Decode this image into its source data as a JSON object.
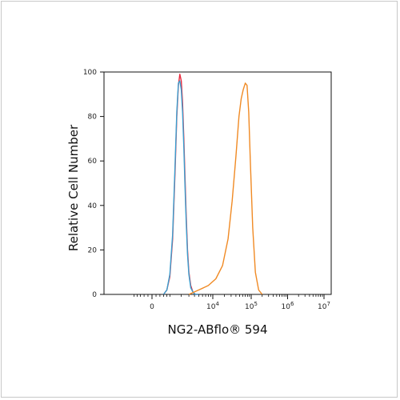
{
  "chart_data": {
    "type": "line",
    "xlabel": "NG2-ABflo® 594",
    "ylabel": "Relative Cell Number",
    "x_scale": "biexponential",
    "xlim": [
      -1000,
      10000000
    ],
    "ylim": [
      0,
      100
    ],
    "y_ticks": [
      0,
      20,
      40,
      60,
      80,
      100
    ],
    "x_ticks": [
      {
        "value": 0,
        "label": "0"
      },
      {
        "value": 10000,
        "label": "10",
        "exp": "4"
      },
      {
        "value": 100000,
        "label": "10",
        "exp": "5"
      },
      {
        "value": 1000000,
        "label": "10",
        "exp": "6"
      },
      {
        "value": 10000000,
        "label": "10",
        "exp": "7"
      }
    ],
    "grid": false,
    "legend": "none",
    "series": [
      {
        "color": "#e8283c",
        "x": [
          600,
          800,
          1000,
          1200,
          1400,
          1550,
          1700,
          1850,
          2000,
          2150,
          2300,
          2450,
          2600,
          2800,
          3000,
          3300,
          3700,
          4200,
          5000
        ],
        "values": [
          0,
          2,
          8,
          25,
          55,
          80,
          94,
          99,
          96,
          86,
          70,
          52,
          36,
          20,
          10,
          4,
          1,
          0,
          0
        ]
      },
      {
        "color": "#3a9fd0",
        "x": [
          600,
          800,
          1000,
          1200,
          1400,
          1550,
          1700,
          1850,
          2000,
          2150,
          2300,
          2450,
          2600,
          2800,
          3000,
          3300,
          3700,
          4200,
          5000
        ],
        "values": [
          0,
          2,
          9,
          27,
          58,
          82,
          95,
          96,
          92,
          82,
          66,
          48,
          33,
          18,
          9,
          3,
          1,
          0,
          0
        ]
      },
      {
        "color": "#f08a24",
        "x": [
          3000,
          5000,
          8000,
          12000,
          18000,
          25000,
          32000,
          40000,
          48000,
          55000,
          62000,
          70000,
          78000,
          86000,
          95000,
          110000,
          130000,
          160000,
          200000
        ],
        "values": [
          0,
          2,
          4,
          7,
          13,
          25,
          42,
          62,
          80,
          88,
          92,
          95,
          94,
          82,
          60,
          30,
          10,
          2,
          0
        ]
      }
    ]
  }
}
